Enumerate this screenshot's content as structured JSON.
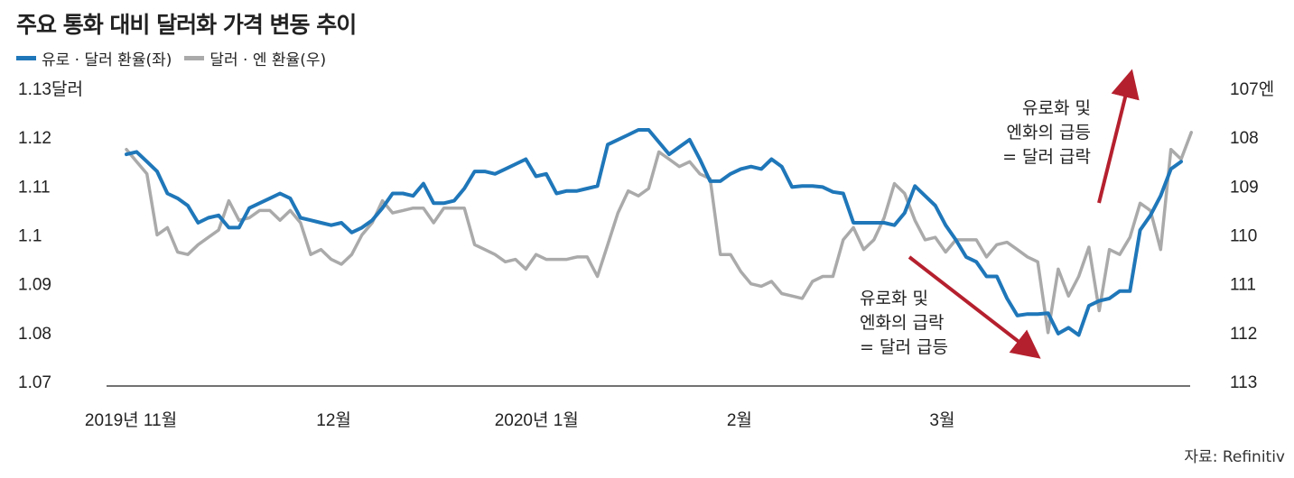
{
  "title": "주요 통화 대비 달러화 가격 변동 추이",
  "source": "자료: Refinitiv",
  "colors": {
    "eurusd": "#1f77b9",
    "usdjpy": "#aaaaaa",
    "arrow": "#b5202e",
    "axis": "#444444"
  },
  "chart_data": {
    "type": "line",
    "title": "주요 통화 대비 달러화 가격 변동 추이",
    "grid": false,
    "legend_position": "top-left",
    "x_tick_labels": [
      "2019년 11월",
      "12월",
      "2020년 1월",
      "2월",
      "3월"
    ],
    "x_tick_index": [
      0,
      20,
      40,
      60,
      80
    ],
    "y_left": {
      "ticks": [
        1.13,
        1.12,
        1.11,
        1.1,
        1.09,
        1.08,
        1.07
      ],
      "tick_labels": [
        "1.13달러",
        "1.12",
        "1.11",
        "1.1",
        "1.09",
        "1.08",
        "1.07"
      ],
      "range": [
        1.07,
        1.13
      ]
    },
    "y_right": {
      "ticks": [
        107,
        108,
        109,
        110,
        111,
        112,
        113
      ],
      "tick_labels": [
        "107엔",
        "108",
        "109",
        "110",
        "111",
        "112",
        "113"
      ],
      "range": [
        107,
        113
      ],
      "inverted": true
    },
    "series": [
      {
        "name": "유로 · 달러 환율(좌)",
        "axis": "left",
        "values": [
          1.1165,
          1.117,
          1.115,
          1.113,
          1.1085,
          1.1075,
          1.106,
          1.1025,
          1.1035,
          1.104,
          1.1015,
          1.1015,
          1.1055,
          1.1065,
          1.1075,
          1.1085,
          1.1075,
          1.1035,
          1.103,
          1.1025,
          1.102,
          1.1025,
          1.1005,
          1.1015,
          1.103,
          1.1055,
          1.1085,
          1.1085,
          1.108,
          1.1105,
          1.1065,
          1.1065,
          1.107,
          1.1095,
          1.113,
          1.113,
          1.1125,
          1.1135,
          1.1145,
          1.1155,
          1.112,
          1.1125,
          1.1085,
          1.109,
          1.109,
          1.1095,
          1.11,
          1.1185,
          1.1195,
          1.1205,
          1.1215,
          1.1215,
          1.119,
          1.1165,
          1.118,
          1.1195,
          1.1155,
          1.111,
          1.111,
          1.1125,
          1.1135,
          1.114,
          1.1135,
          1.1155,
          1.114,
          1.1098,
          1.11,
          1.11,
          1.1098,
          1.1088,
          1.1085,
          1.1025,
          1.1025,
          1.1025,
          1.1025,
          1.102,
          1.1045,
          1.11,
          1.108,
          1.106,
          1.102,
          1.099,
          1.0955,
          1.0945,
          1.0915,
          1.0915,
          1.087,
          1.0835,
          1.0838,
          1.0838,
          1.084,
          1.0798,
          1.081,
          1.0795,
          1.0855,
          1.0865,
          1.087,
          1.0885,
          1.0885,
          1.101,
          1.104,
          1.108,
          1.1135,
          1.115
        ]
      },
      {
        "name": "달러 · 엔 환율(우)",
        "axis": "right",
        "values": [
          108.25,
          108.5,
          108.75,
          110.0,
          109.85,
          110.35,
          110.4,
          110.2,
          110.05,
          109.9,
          109.3,
          109.7,
          109.65,
          109.5,
          109.5,
          109.7,
          109.5,
          109.75,
          110.4,
          110.3,
          110.5,
          110.6,
          110.4,
          110.0,
          109.75,
          109.3,
          109.55,
          109.5,
          109.45,
          109.45,
          109.75,
          109.45,
          109.45,
          109.45,
          110.2,
          110.3,
          110.4,
          110.55,
          110.5,
          110.7,
          110.4,
          110.5,
          110.5,
          110.5,
          110.45,
          110.45,
          110.85,
          110.2,
          109.55,
          109.1,
          109.2,
          109.05,
          108.3,
          108.45,
          108.6,
          108.5,
          108.75,
          108.85,
          110.4,
          110.4,
          110.75,
          111.0,
          111.05,
          110.95,
          111.2,
          111.25,
          111.3,
          110.95,
          110.85,
          110.85,
          110.1,
          109.85,
          110.3,
          110.1,
          109.65,
          108.95,
          109.15,
          109.7,
          110.1,
          110.05,
          110.35,
          110.1,
          110.1,
          110.1,
          110.45,
          110.2,
          110.15,
          110.3,
          110.45,
          110.55,
          112.0,
          110.7,
          111.25,
          110.85,
          110.25,
          111.55,
          110.3,
          110.4,
          110.05,
          109.35,
          109.5,
          110.3,
          108.25,
          108.45,
          107.9
        ]
      }
    ],
    "annotations": [
      {
        "lines": [
          "유로화 및",
          "엔화의 급등",
          "= 달러 급락"
        ],
        "arrow": "up"
      },
      {
        "lines": [
          "유로화 및",
          "엔화의 급락",
          "= 달러 급등"
        ],
        "arrow": "down"
      }
    ]
  }
}
